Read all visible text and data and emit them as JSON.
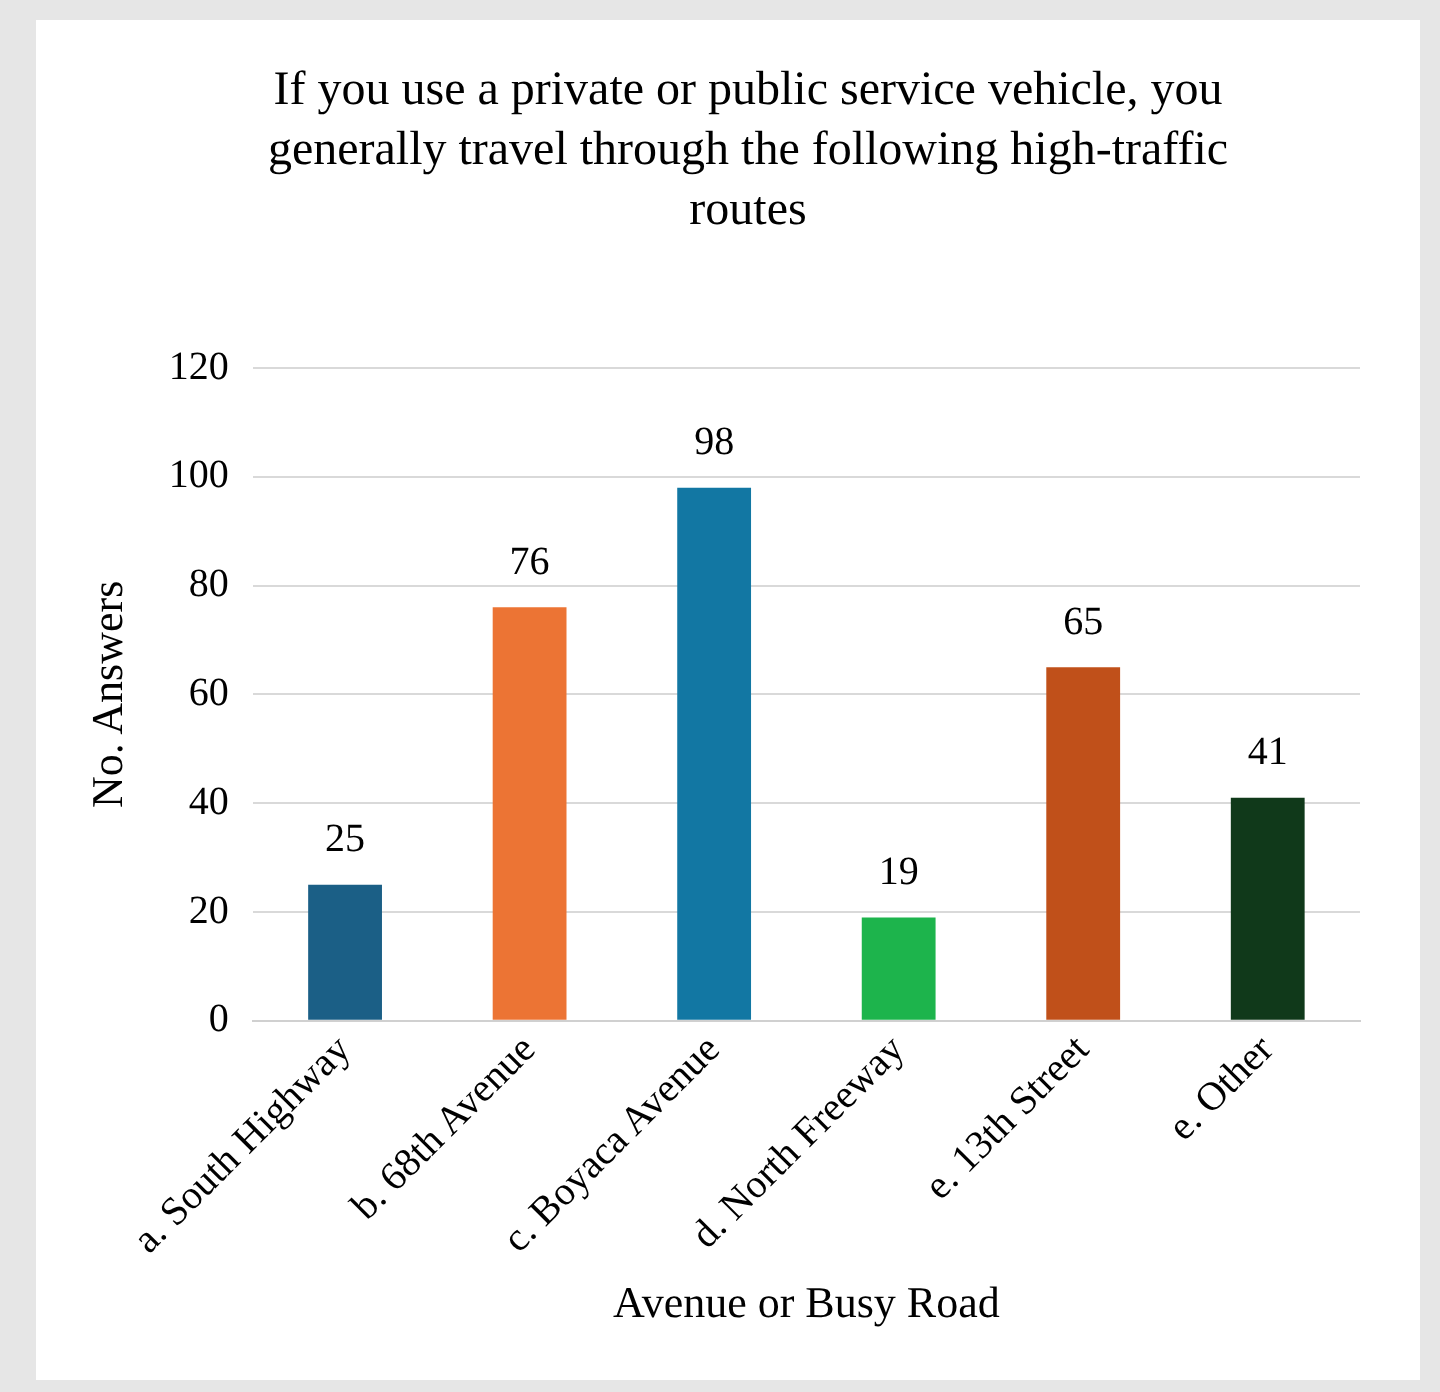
{
  "chart_data": {
    "type": "bar",
    "title": "If you use a private or public service vehicle, you generally travel through the following high-traffic routes",
    "xlabel": "Avenue or Busy Road",
    "ylabel": "No. Answers",
    "categories": [
      "a. South Highway",
      "b. 68th Avenue",
      "c. Boyaca Avenue",
      "d. North Freeway",
      "e. 13th Street",
      "e. Other"
    ],
    "values": [
      25,
      76,
      98,
      19,
      65,
      41
    ],
    "colors": [
      "#1b5f86",
      "#ec7434",
      "#1277a3",
      "#1db44c",
      "#c0501a",
      "#10391a"
    ],
    "ylim": [
      0,
      120
    ],
    "yticks": [
      0,
      20,
      40,
      60,
      80,
      100,
      120
    ],
    "grid": "y",
    "data_labels": true
  }
}
